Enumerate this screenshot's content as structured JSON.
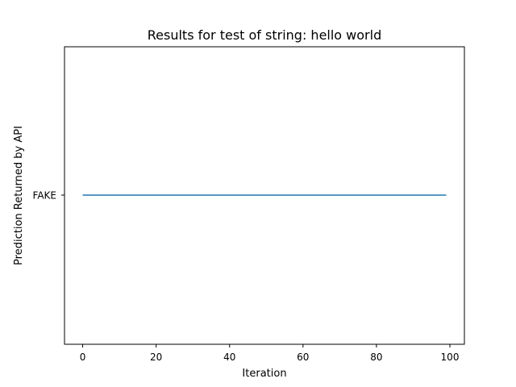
{
  "chart_data": {
    "type": "line",
    "title": "Results for test of string: hello world",
    "xlabel": "Iteration",
    "ylabel": "Prediction Returned by API",
    "xlim": [
      -4.95,
      103.95
    ],
    "x_ticks": [
      0,
      20,
      40,
      60,
      80,
      100
    ],
    "y_categories": [
      "FAKE"
    ],
    "grid": false,
    "series": [
      {
        "color": "#1f77b4",
        "x": [
          0,
          99
        ],
        "y": [
          "FAKE",
          "FAKE"
        ]
      }
    ]
  }
}
